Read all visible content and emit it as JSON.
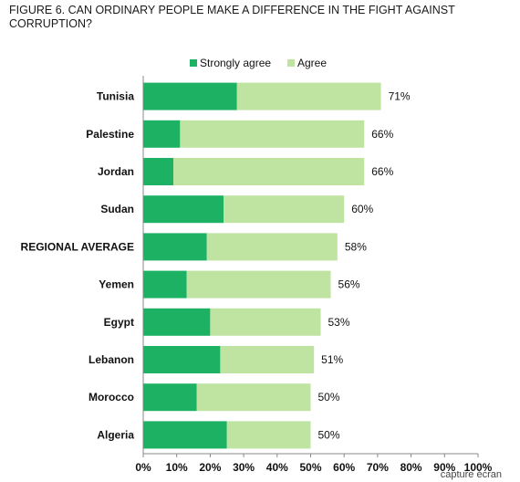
{
  "title": "FIGURE 6. CAN ORDINARY PEOPLE MAKE A DIFFERENCE IN THE FIGHT AGAINST CORRUPTION?",
  "credit": "capture écran",
  "colors": {
    "strongly_agree": "#1db164",
    "agree": "#bfe3a1"
  },
  "chart_data": {
    "type": "bar",
    "orientation": "horizontal",
    "stacked": true,
    "categories": [
      "Tunisia",
      "Palestine",
      "Jordan",
      "Sudan",
      "REGIONAL AVERAGE",
      "Yemen",
      "Egypt",
      "Lebanon",
      "Morocco",
      "Algeria"
    ],
    "series": [
      {
        "name": "Strongly agree",
        "values": [
          28,
          11,
          9,
          24,
          19,
          13,
          20,
          23,
          16,
          25
        ]
      },
      {
        "name": "Agree",
        "values": [
          43,
          55,
          57,
          36,
          39,
          43,
          33,
          28,
          34,
          25
        ]
      }
    ],
    "totals_labels": [
      "71%",
      "66%",
      "66%",
      "60%",
      "58%",
      "56%",
      "53%",
      "51%",
      "50%",
      "50%"
    ],
    "xlim": [
      0,
      100
    ],
    "xticks": [
      "0%",
      "10%",
      "20%",
      "30%",
      "40%",
      "50%",
      "60%",
      "70%",
      "80%",
      "90%",
      "100%"
    ],
    "grid": false,
    "legend_position": "top"
  }
}
